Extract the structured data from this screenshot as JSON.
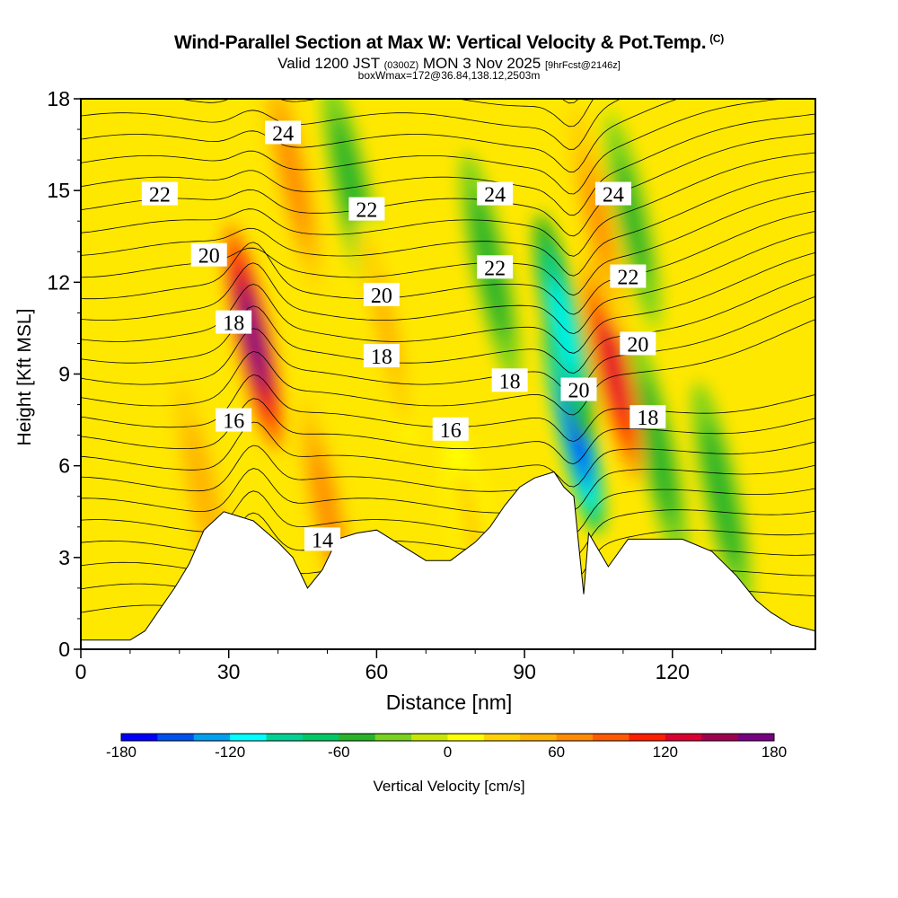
{
  "title": {
    "main": "Wind-Parallel Section at Max W: Vertical Velocity & Pot.Temp.",
    "copyright": "(C)",
    "valid_prefix": "Valid 1200 JST",
    "valid_utc": "(0300Z)",
    "valid_date": "MON 3 Nov 2025",
    "forecast": "[9hrFcst@2146z]",
    "box": "boxWmax=172@36.84,138.12,2503m"
  },
  "chart_data": {
    "type": "heatmap",
    "xlabel": "Distance [nm]",
    "ylabel": "Height [Kft MSL]",
    "xlim": [
      0,
      149
    ],
    "ylim": [
      0,
      18
    ],
    "xticks": [
      0,
      30,
      60,
      90,
      120
    ],
    "yticks": [
      0,
      3,
      6,
      9,
      12,
      15,
      18
    ],
    "colorbar": {
      "label": "Vertical Velocity [cm/s]",
      "range": [
        -180,
        180
      ],
      "tick_values": [
        -180,
        -120,
        -60,
        0,
        60,
        120,
        180
      ],
      "colors": [
        "#0000ff",
        "#0050f0",
        "#00a0f0",
        "#00ffff",
        "#00d296",
        "#00c864",
        "#28b428",
        "#78d21e",
        "#c8e600",
        "#ffff00",
        "#ffd200",
        "#ffb400",
        "#ff8c00",
        "#ff5a00",
        "#ff1e00",
        "#dc0032",
        "#a00050",
        "#780082"
      ]
    },
    "theta_labels": [
      {
        "text": "24",
        "x": 41,
        "y": 16.9
      },
      {
        "text": "22",
        "x": 16,
        "y": 14.9
      },
      {
        "text": "22",
        "x": 58,
        "y": 14.4
      },
      {
        "text": "24",
        "x": 84,
        "y": 14.9
      },
      {
        "text": "24",
        "x": 108,
        "y": 14.9
      },
      {
        "text": "20",
        "x": 26,
        "y": 12.9
      },
      {
        "text": "22",
        "x": 84,
        "y": 12.5
      },
      {
        "text": "22",
        "x": 111,
        "y": 12.2
      },
      {
        "text": "20",
        "x": 61,
        "y": 11.6
      },
      {
        "text": "18",
        "x": 31,
        "y": 10.7
      },
      {
        "text": "20",
        "x": 113,
        "y": 10.0
      },
      {
        "text": "18",
        "x": 61,
        "y": 9.6
      },
      {
        "text": "18",
        "x": 87,
        "y": 8.8
      },
      {
        "text": "20",
        "x": 101,
        "y": 8.5
      },
      {
        "text": "18",
        "x": 115,
        "y": 7.6
      },
      {
        "text": "16",
        "x": 31,
        "y": 7.5
      },
      {
        "text": "16",
        "x": 75,
        "y": 7.2
      },
      {
        "text": "14",
        "x": 49,
        "y": 3.6
      }
    ],
    "updrafts": [
      {
        "x": 35,
        "y": 10.2,
        "w": 162
      },
      {
        "x": 43,
        "y": 15.5,
        "w": 70
      },
      {
        "x": 108,
        "y": 9.2,
        "w": 135
      },
      {
        "x": 105,
        "y": 14.0,
        "w": 60
      },
      {
        "x": 50,
        "y": 4.5,
        "w": 70
      },
      {
        "x": 25,
        "y": 5.0,
        "w": 55
      },
      {
        "x": 62,
        "y": 10.5,
        "w": 40
      },
      {
        "x": 80,
        "y": 3.5,
        "w": 30
      }
    ],
    "downdrafts": [
      {
        "x": 100,
        "y": 7.5,
        "w": -175
      },
      {
        "x": 98,
        "y": 10.5,
        "w": -110
      },
      {
        "x": 83,
        "y": 12.5,
        "w": -55
      },
      {
        "x": 55,
        "y": 15.0,
        "w": -55
      },
      {
        "x": 117,
        "y": 6.5,
        "w": -60
      },
      {
        "x": 130,
        "y": 5.0,
        "w": -55
      },
      {
        "x": 112,
        "y": 14.0,
        "w": -50
      }
    ],
    "terrain": [
      [
        0,
        0.3
      ],
      [
        10,
        0.3
      ],
      [
        13,
        0.6
      ],
      [
        16,
        1.3
      ],
      [
        19,
        2.0
      ],
      [
        22,
        2.8
      ],
      [
        25,
        3.9
      ],
      [
        29,
        4.5
      ],
      [
        35,
        4.2
      ],
      [
        40,
        3.5
      ],
      [
        43,
        3.0
      ],
      [
        46,
        2.0
      ],
      [
        49,
        2.6
      ],
      [
        52,
        3.6
      ],
      [
        56,
        3.8
      ],
      [
        60,
        3.9
      ],
      [
        65,
        3.4
      ],
      [
        70,
        2.9
      ],
      [
        75,
        2.9
      ],
      [
        80,
        3.5
      ],
      [
        83,
        4.0
      ],
      [
        86,
        4.7
      ],
      [
        89,
        5.3
      ],
      [
        92,
        5.6
      ],
      [
        96,
        5.8
      ],
      [
        98,
        5.3
      ],
      [
        100,
        5.0
      ],
      [
        102,
        1.8
      ],
      [
        103,
        3.8
      ],
      [
        107,
        2.7
      ],
      [
        111,
        3.6
      ],
      [
        115,
        3.6
      ],
      [
        122,
        3.6
      ],
      [
        128,
        3.2
      ],
      [
        133,
        2.4
      ],
      [
        137,
        1.6
      ],
      [
        140,
        1.2
      ],
      [
        144,
        0.8
      ],
      [
        149,
        0.6
      ]
    ]
  }
}
